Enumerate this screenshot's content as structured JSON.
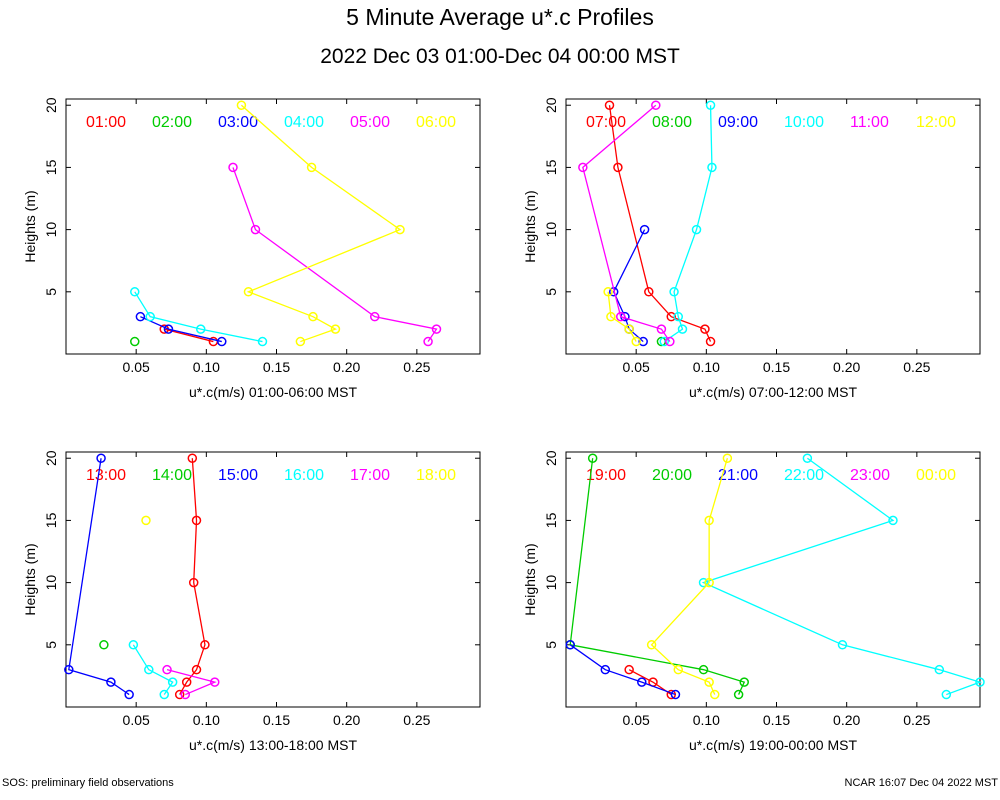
{
  "title": "5 Minute Average u*.c Profiles",
  "subtitle": "2022 Dec 03 01:00-Dec 04 00:00 MST",
  "footer": {
    "left": "SOS: preliminary field observations",
    "right": "NCAR 16:07 Dec 04 2022 MST"
  },
  "colors": {
    "red": "#ff0000",
    "green": "#00cc00",
    "blue": "#0000ff",
    "cyan": "#00ffff",
    "magenta": "#ff00ff",
    "yellow": "#ffff00",
    "black": "#000000"
  },
  "chart_data": [
    {
      "type": "line",
      "xlabel": "u*.c(m/s) 01:00-06:00 MST",
      "ylabel": "Heights (m)",
      "xlim": [
        0.0,
        0.295
      ],
      "ylim": [
        0.0,
        20.5
      ],
      "xticks": [
        "0.05",
        "0.10",
        "0.15",
        "0.20",
        "0.25"
      ],
      "yticks": [
        "5",
        "10",
        "15",
        "20"
      ],
      "series": [
        {
          "name": "01:00",
          "color": "red",
          "points": [
            [
              0.07,
              2
            ],
            [
              0.105,
              1
            ]
          ]
        },
        {
          "name": "02:00",
          "color": "green",
          "points": [
            [
              0.049,
              1
            ]
          ]
        },
        {
          "name": "03:00",
          "color": "blue",
          "points": [
            [
              0.053,
              3
            ],
            [
              0.073,
              2
            ],
            [
              0.111,
              1
            ]
          ]
        },
        {
          "name": "04:00",
          "color": "cyan",
          "points": [
            [
              0.049,
              5
            ],
            [
              0.06,
              3
            ],
            [
              0.096,
              2
            ],
            [
              0.14,
              1
            ]
          ]
        },
        {
          "name": "05:00",
          "color": "magenta",
          "points": [
            [
              0.119,
              15
            ],
            [
              0.135,
              10
            ],
            [
              0.22,
              3
            ],
            [
              0.264,
              2
            ],
            [
              0.258,
              1
            ]
          ]
        },
        {
          "name": "06:00",
          "color": "yellow",
          "points": [
            [
              0.125,
              20
            ],
            [
              0.175,
              15
            ],
            [
              0.238,
              10
            ],
            [
              0.13,
              5
            ],
            [
              0.176,
              3
            ],
            [
              0.192,
              2
            ],
            [
              0.167,
              1
            ]
          ]
        }
      ]
    },
    {
      "type": "line",
      "xlabel": "u*.c(m/s) 07:00-12:00 MST",
      "ylabel": "Heights (m)",
      "xlim": [
        0.0,
        0.295
      ],
      "ylim": [
        0.0,
        20.5
      ],
      "xticks": [
        "0.05",
        "0.10",
        "0.15",
        "0.20",
        "0.25"
      ],
      "yticks": [
        "5",
        "10",
        "15",
        "20"
      ],
      "series": [
        {
          "name": "07:00",
          "color": "red",
          "points": [
            [
              0.031,
              20
            ],
            [
              0.037,
              15
            ],
            [
              0.059,
              5
            ],
            [
              0.075,
              3
            ],
            [
              0.099,
              2
            ],
            [
              0.103,
              1
            ]
          ]
        },
        {
          "name": "08:00",
          "color": "green",
          "points": [
            [
              0.068,
              1
            ]
          ]
        },
        {
          "name": "09:00",
          "color": "blue",
          "points": [
            [
              0.056,
              10
            ],
            [
              0.034,
              5
            ],
            [
              0.042,
              3
            ],
            [
              0.045,
              2
            ],
            [
              0.055,
              1
            ]
          ]
        },
        {
          "name": "10:00",
          "color": "cyan",
          "points": [
            [
              0.103,
              20
            ],
            [
              0.104,
              15
            ],
            [
              0.093,
              10
            ],
            [
              0.077,
              5
            ],
            [
              0.08,
              3
            ],
            [
              0.083,
              2
            ],
            [
              0.07,
              1
            ]
          ]
        },
        {
          "name": "11:00",
          "color": "magenta",
          "points": [
            [
              0.064,
              20
            ],
            [
              0.012,
              15
            ],
            [
              0.039,
              3
            ],
            [
              0.068,
              2
            ],
            [
              0.074,
              1
            ]
          ]
        },
        {
          "name": "12:00",
          "color": "yellow",
          "points": [
            [
              0.03,
              5
            ],
            [
              0.032,
              3
            ],
            [
              0.045,
              2
            ],
            [
              0.05,
              1
            ]
          ]
        }
      ]
    },
    {
      "type": "line",
      "xlabel": "u*.c(m/s) 13:00-18:00 MST",
      "ylabel": "Heights (m)",
      "xlim": [
        0.0,
        0.295
      ],
      "ylim": [
        0.0,
        20.5
      ],
      "xticks": [
        "0.05",
        "0.10",
        "0.15",
        "0.20",
        "0.25"
      ],
      "yticks": [
        "5",
        "10",
        "15",
        "20"
      ],
      "series": [
        {
          "name": "13:00",
          "color": "red",
          "points": [
            [
              0.09,
              20
            ],
            [
              0.093,
              15
            ],
            [
              0.091,
              10
            ],
            [
              0.099,
              5
            ],
            [
              0.093,
              3
            ],
            [
              0.086,
              2
            ],
            [
              0.081,
              1
            ]
          ]
        },
        {
          "name": "14:00",
          "color": "green",
          "points": [
            [
              0.027,
              5
            ]
          ]
        },
        {
          "name": "15:00",
          "color": "blue",
          "points": [
            [
              0.025,
              20
            ],
            [
              0.002,
              3
            ],
            [
              0.032,
              2
            ],
            [
              0.045,
              1
            ]
          ]
        },
        {
          "name": "16:00",
          "color": "cyan",
          "points": [
            [
              0.048,
              5
            ],
            [
              0.059,
              3
            ],
            [
              0.076,
              2
            ],
            [
              0.07,
              1
            ]
          ]
        },
        {
          "name": "17:00",
          "color": "magenta",
          "points": [
            [
              0.072,
              3
            ],
            [
              0.106,
              2
            ],
            [
              0.085,
              1
            ]
          ]
        },
        {
          "name": "18:00",
          "color": "yellow",
          "points": [
            [
              0.057,
              15
            ]
          ]
        }
      ]
    },
    {
      "type": "line",
      "xlabel": "u*.c(m/s) 19:00-00:00 MST",
      "ylabel": "Heights (m)",
      "xlim": [
        0.0,
        0.295
      ],
      "ylim": [
        0.0,
        20.5
      ],
      "xticks": [
        "0.05",
        "0.10",
        "0.15",
        "0.20",
        "0.25"
      ],
      "yticks": [
        "5",
        "10",
        "15",
        "20"
      ],
      "series": [
        {
          "name": "19:00",
          "color": "red",
          "points": [
            [
              0.045,
              3
            ],
            [
              0.062,
              2
            ],
            [
              0.075,
              1
            ]
          ]
        },
        {
          "name": "20:00",
          "color": "green",
          "points": [
            [
              0.019,
              20
            ],
            [
              0.003,
              5
            ],
            [
              0.098,
              3
            ],
            [
              0.127,
              2
            ],
            [
              0.123,
              1
            ]
          ]
        },
        {
          "name": "21:00",
          "color": "blue",
          "points": [
            [
              0.003,
              5
            ],
            [
              0.028,
              3
            ],
            [
              0.054,
              2
            ],
            [
              0.078,
              1
            ]
          ]
        },
        {
          "name": "22:00",
          "color": "cyan",
          "points": [
            [
              0.172,
              20
            ],
            [
              0.233,
              15
            ],
            [
              0.098,
              10
            ],
            [
              0.197,
              5
            ],
            [
              0.266,
              3
            ],
            [
              0.295,
              2
            ],
            [
              0.271,
              1
            ]
          ]
        },
        {
          "name": "23:00",
          "color": "magenta",
          "points": []
        },
        {
          "name": "00:00",
          "color": "yellow",
          "points": [
            [
              0.115,
              20
            ],
            [
              0.102,
              15
            ],
            [
              0.102,
              10
            ],
            [
              0.061,
              5
            ],
            [
              0.08,
              3
            ],
            [
              0.102,
              2
            ],
            [
              0.106,
              1
            ]
          ]
        }
      ]
    }
  ]
}
